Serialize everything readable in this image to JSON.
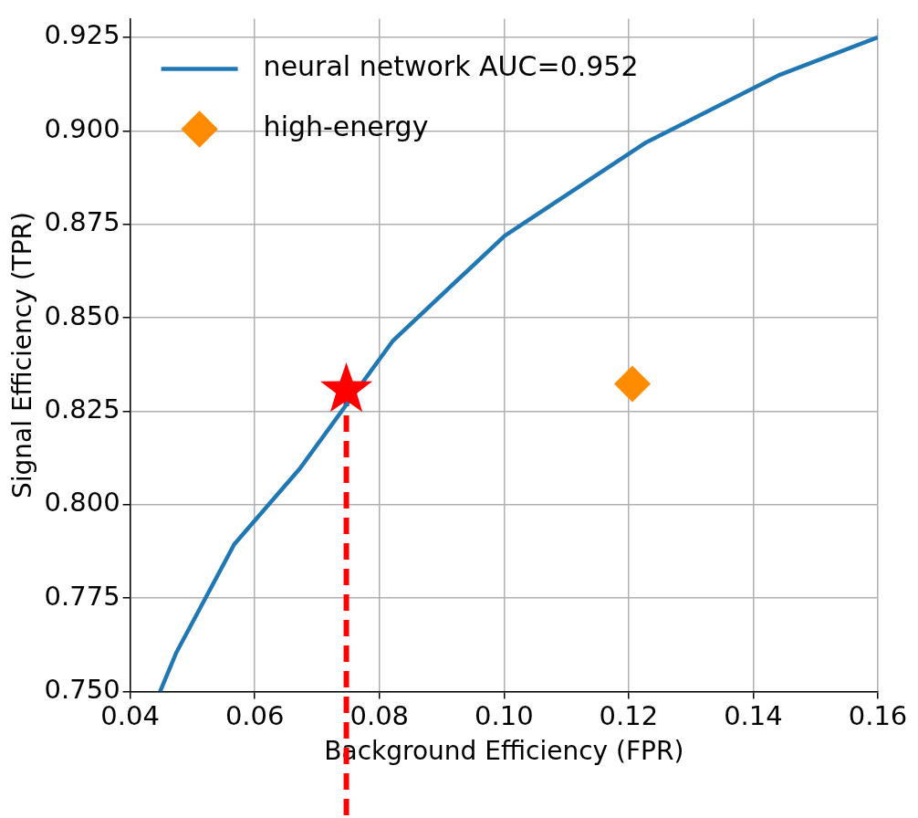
{
  "chart_data": {
    "type": "line",
    "xlabel": "Background Efficiency (FPR)",
    "ylabel": "Signal Efficiency (TPR)",
    "xlim": [
      0.04,
      0.16
    ],
    "xticks": [
      {
        "value": 0.04,
        "label": "0.04"
      },
      {
        "value": 0.06,
        "label": "0.06"
      },
      {
        "value": 0.08,
        "label": "0.08"
      },
      {
        "value": 0.1,
        "label": "0.10"
      },
      {
        "value": 0.12,
        "label": "0.12"
      },
      {
        "value": 0.14,
        "label": "0.14"
      },
      {
        "value": 0.16,
        "label": "0.16"
      }
    ],
    "ylim": [
      0.75,
      0.93
    ],
    "yticks": [
      {
        "value": 0.75,
        "label": "0.750"
      },
      {
        "value": 0.775,
        "label": "0.775"
      },
      {
        "value": 0.8,
        "label": "0.800"
      },
      {
        "value": 0.825,
        "label": "0.825"
      },
      {
        "value": 0.85,
        "label": "0.850"
      },
      {
        "value": 0.875,
        "label": "0.875"
      },
      {
        "value": 0.9,
        "label": "0.900"
      },
      {
        "value": 0.925,
        "label": "0.925"
      }
    ],
    "grid": true,
    "legend": "top left",
    "series": [
      {
        "type": "line",
        "name": "neural network AUC=0.952",
        "color": "#1f77b4",
        "marker": "none",
        "line_style": "solid",
        "x": [
          0.0448,
          0.0474,
          0.0567,
          0.0673,
          0.0822,
          0.1001,
          0.1226,
          0.1443,
          0.16
        ],
        "values": [
          0.75,
          0.7604,
          0.7894,
          0.8098,
          0.8439,
          0.8719,
          0.8967,
          0.915,
          0.925
        ]
      },
      {
        "type": "scatter",
        "name": "high-energy",
        "color": "#ff8c00",
        "marker": "diamond",
        "x": [
          0.1206
        ],
        "values": [
          0.8323
        ]
      },
      {
        "type": "scatter",
        "color": "#ff0000",
        "marker": "star",
        "x": [
          0.0747
        ],
        "values": [
          0.8307
        ]
      }
    ],
    "ref_lines": [
      {
        "axis": "x",
        "value": 0.0747,
        "color": "#ff0000",
        "line_style": "dashed"
      }
    ]
  }
}
